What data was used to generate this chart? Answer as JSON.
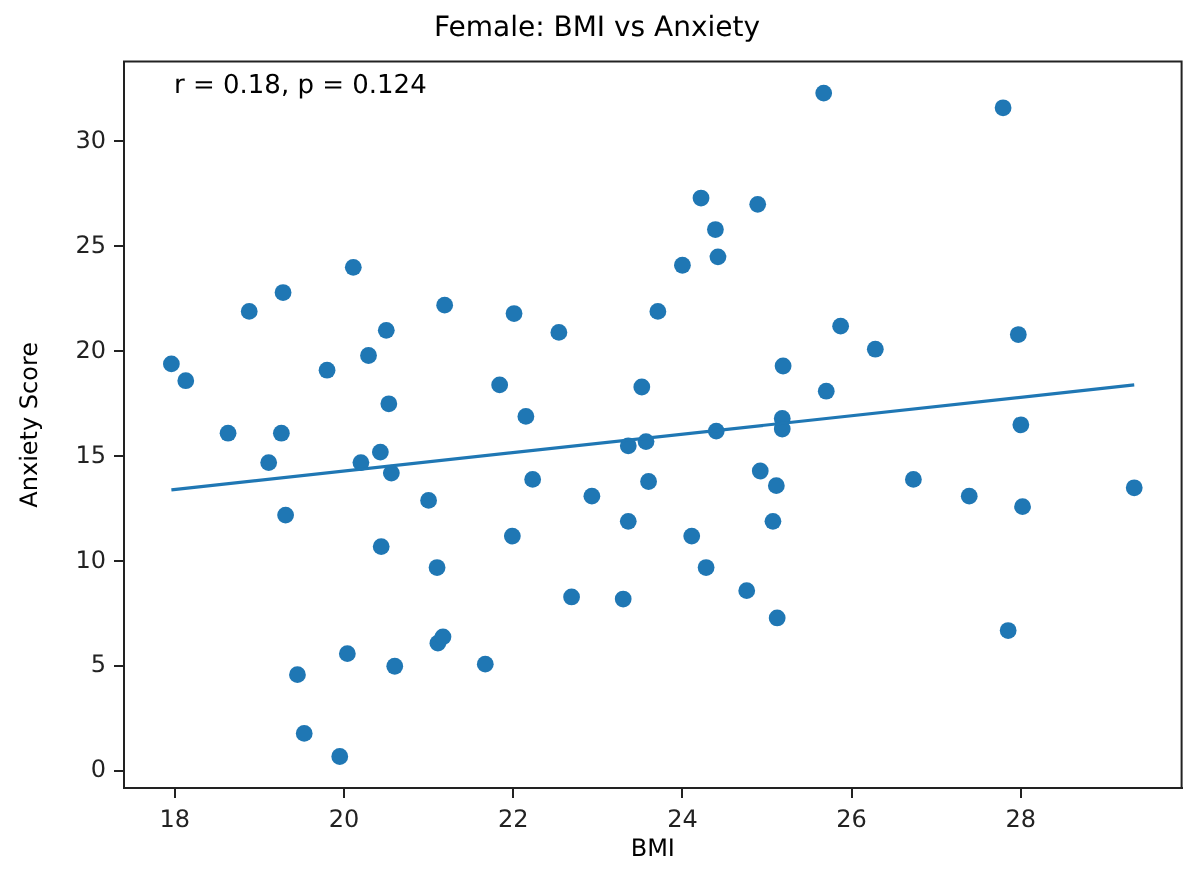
{
  "chart_data": {
    "type": "scatter",
    "title": "Female: BMI vs Anxiety",
    "xlabel": "BMI",
    "ylabel": "Anxiety Score",
    "annotations": [
      "r = 0.18, p = 0.124"
    ],
    "xlim": [
      17.4,
      29.9
    ],
    "ylim": [
      -0.8,
      33.8
    ],
    "xticks": [
      18,
      20,
      22,
      24,
      26,
      28
    ],
    "yticks": [
      0,
      5,
      10,
      15,
      20,
      25,
      30
    ],
    "grid": false,
    "legend": false,
    "marker": "circle",
    "series": [
      {
        "type": "scatter",
        "color": "#1f77b4",
        "x": [
          17.96,
          18.13,
          18.63,
          18.88,
          19.11,
          19.26,
          19.28,
          19.31,
          19.45,
          19.53,
          19.8,
          19.95,
          20.04,
          20.11,
          20.2,
          20.29,
          20.43,
          20.44,
          20.5,
          20.53,
          20.56,
          20.6,
          21.0,
          21.1,
          21.11,
          21.17,
          21.19,
          21.67,
          21.84,
          21.99,
          22.01,
          22.15,
          22.23,
          22.54,
          22.69,
          22.93,
          23.3,
          23.36,
          23.36,
          23.52,
          23.57,
          23.6,
          23.71,
          24.0,
          24.11,
          24.22,
          24.28,
          24.39,
          24.4,
          24.42,
          24.76,
          24.89,
          24.92,
          25.07,
          25.11,
          25.12,
          25.18,
          25.18,
          25.19,
          25.67,
          25.7,
          25.87,
          26.28,
          26.73,
          27.39,
          27.79,
          27.85,
          27.97,
          28.0,
          28.02,
          29.34
        ],
        "values": [
          19.4,
          18.6,
          16.1,
          21.9,
          14.7,
          16.1,
          22.8,
          12.2,
          4.6,
          1.8,
          19.1,
          0.7,
          5.6,
          24.0,
          14.7,
          19.8,
          15.2,
          10.7,
          21.0,
          17.5,
          14.2,
          5.0,
          12.9,
          9.7,
          6.1,
          6.4,
          22.2,
          5.1,
          18.4,
          11.2,
          21.8,
          16.9,
          13.9,
          20.9,
          8.3,
          13.1,
          8.2,
          15.5,
          11.9,
          18.3,
          15.7,
          13.8,
          21.9,
          24.1,
          11.2,
          27.3,
          9.7,
          25.8,
          16.2,
          24.5,
          8.6,
          27.0,
          14.3,
          11.9,
          13.6,
          7.3,
          16.8,
          16.3,
          19.3,
          32.3,
          18.1,
          21.2,
          20.1,
          13.9,
          13.1,
          31.6,
          6.7,
          20.8,
          16.5,
          12.6,
          13.5
        ]
      },
      {
        "type": "line",
        "marker": "none",
        "color": "#1f77b4",
        "x": [
          17.96,
          29.34
        ],
        "values": [
          13.4,
          18.4
        ]
      }
    ]
  }
}
